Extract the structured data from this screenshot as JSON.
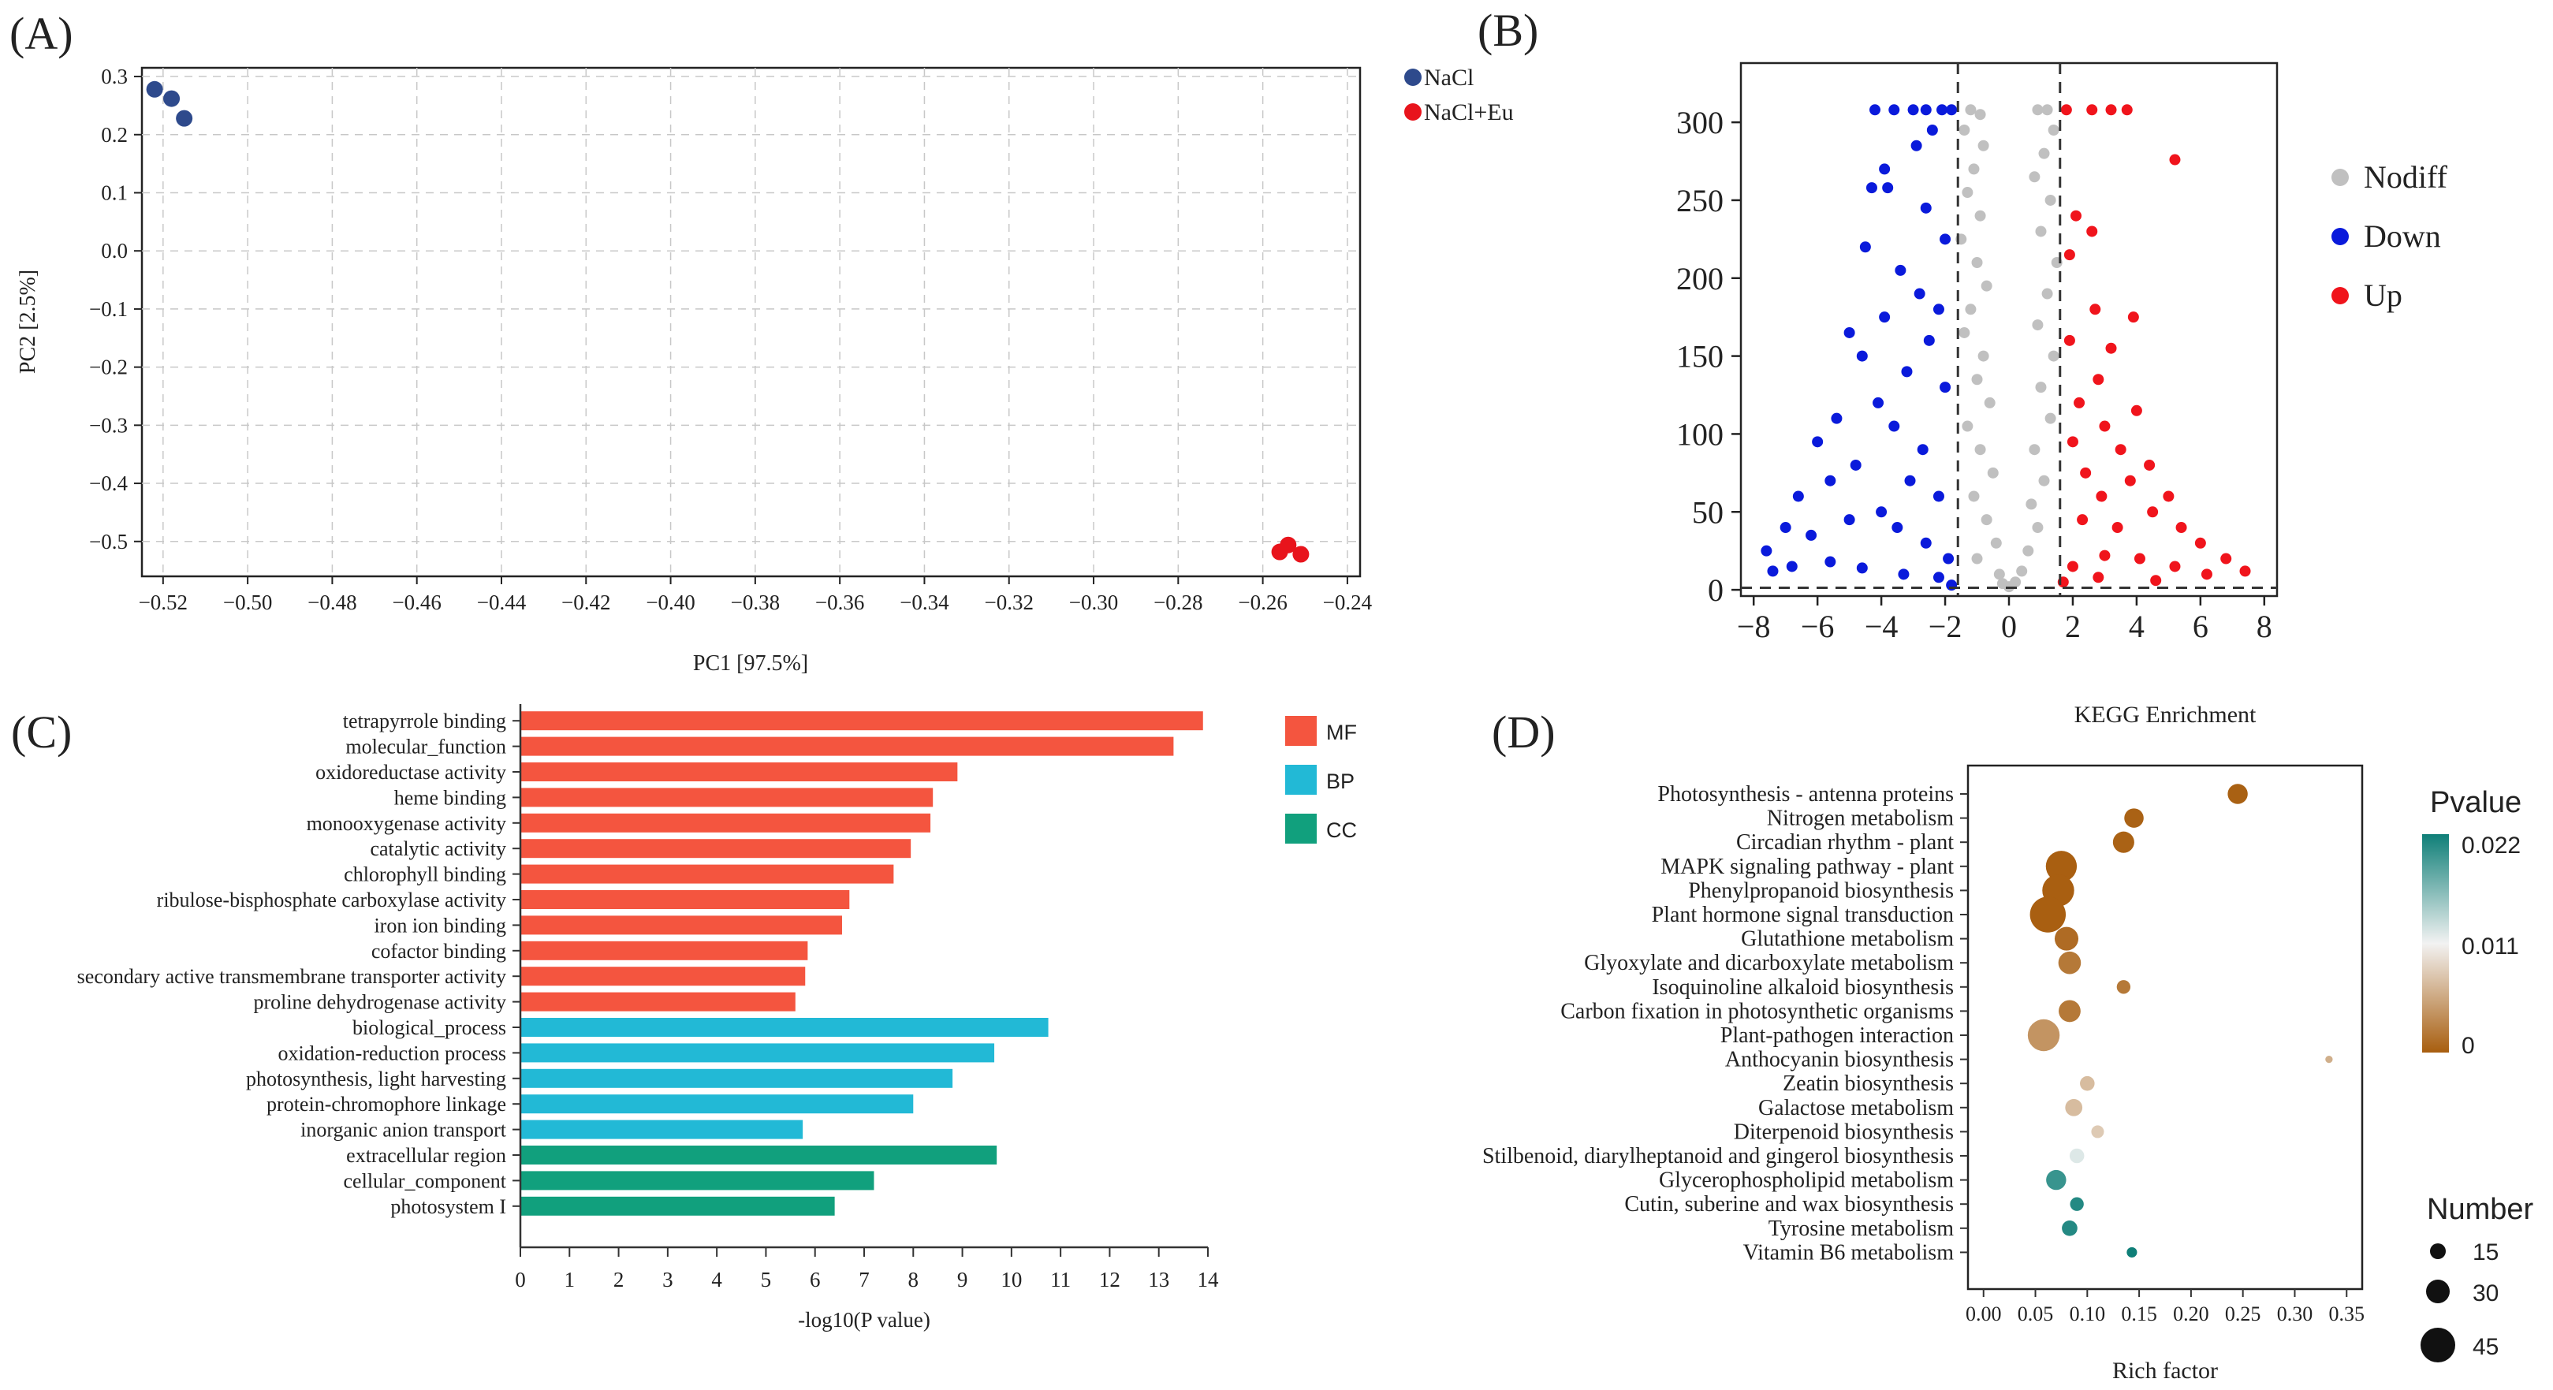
{
  "panels": {
    "a": {
      "letter": "(A)"
    },
    "b": {
      "letter": "(B)"
    },
    "c": {
      "letter": "(C)"
    },
    "d": {
      "letter": "(D)"
    }
  },
  "chart_data": [
    {
      "id": "a",
      "type": "scatter",
      "title": "",
      "xlabel": "PC1 [97.5%]",
      "ylabel": "PC2 [2.5%]",
      "xlim": [
        -0.525,
        -0.237
      ],
      "ylim": [
        -0.56,
        0.315
      ],
      "xticks": [
        -0.52,
        -0.5,
        -0.48,
        -0.46,
        -0.44,
        -0.42,
        -0.4,
        -0.38,
        -0.36,
        -0.34,
        -0.32,
        -0.3,
        -0.28,
        -0.26,
        -0.24
      ],
      "yticks": [
        0.3,
        0.2,
        0.1,
        0.0,
        -0.1,
        -0.2,
        -0.3,
        -0.4,
        -0.5
      ],
      "xtick_labels": [
        "−0.52",
        "−0.50",
        "−0.48",
        "−0.46",
        "−0.44",
        "−0.42",
        "−0.40",
        "−0.38",
        "−0.36",
        "−0.34",
        "−0.32",
        "−0.30",
        "−0.28",
        "−0.26",
        "−0.24"
      ],
      "ytick_labels": [
        "0.3",
        "0.2",
        "0.1",
        "0.0",
        "−0.1",
        "−0.2",
        "−0.3",
        "−0.4",
        "−0.5"
      ],
      "grid": true,
      "legend_position": "top-right-outside",
      "series": [
        {
          "name": "NaCl",
          "color": "#2e4a8c",
          "points": [
            [
              -0.522,
              0.278
            ],
            [
              -0.518,
              0.262
            ],
            [
              -0.515,
              0.228
            ]
          ]
        },
        {
          "name": "NaCl+Eu",
          "color": "#e8141c",
          "points": [
            [
              -0.256,
              -0.518
            ],
            [
              -0.254,
              -0.506
            ],
            [
              -0.251,
              -0.522
            ]
          ]
        }
      ]
    },
    {
      "id": "b",
      "type": "scatter",
      "title": "",
      "xlabel": "",
      "ylabel": "",
      "xlim": [
        -8.4,
        8.4
      ],
      "ylim": [
        -4,
        338
      ],
      "xticks": [
        -8,
        -6,
        -4,
        -2,
        0,
        2,
        4,
        6,
        8
      ],
      "yticks": [
        0,
        50,
        100,
        150,
        200,
        250,
        300
      ],
      "xtick_labels": [
        "−8",
        "−6",
        "−4",
        "−2",
        "0",
        "2",
        "4",
        "6",
        "8"
      ],
      "ytick_labels": [
        "0",
        "50",
        "100",
        "150",
        "200",
        "250",
        "300"
      ],
      "threshold_x": [
        -1.6,
        1.6
      ],
      "threshold_y": 1.3,
      "legend_position": "right",
      "series": [
        {
          "name": "Nodiff",
          "color": "#c0c0c0",
          "points": [
            [
              -1.2,
              308
            ],
            [
              -0.9,
              305
            ],
            [
              -1.4,
              295
            ],
            [
              -0.8,
              285
            ],
            [
              -1.1,
              270
            ],
            [
              -1.3,
              255
            ],
            [
              -0.9,
              240
            ],
            [
              -1.5,
              225
            ],
            [
              -1.0,
              210
            ],
            [
              -0.7,
              195
            ],
            [
              -1.2,
              180
            ],
            [
              -1.4,
              165
            ],
            [
              -0.8,
              150
            ],
            [
              -1.0,
              135
            ],
            [
              -0.6,
              120
            ],
            [
              -1.3,
              105
            ],
            [
              -0.9,
              90
            ],
            [
              -0.5,
              75
            ],
            [
              -1.1,
              60
            ],
            [
              -0.7,
              45
            ],
            [
              -0.4,
              30
            ],
            [
              -1.0,
              20
            ],
            [
              -0.3,
              10
            ],
            [
              -0.2,
              4
            ],
            [
              0.0,
              2
            ],
            [
              0.2,
              5
            ],
            [
              0.4,
              12
            ],
            [
              0.6,
              25
            ],
            [
              0.9,
              40
            ],
            [
              0.7,
              55
            ],
            [
              1.1,
              70
            ],
            [
              0.8,
              90
            ],
            [
              1.3,
              110
            ],
            [
              1.0,
              130
            ],
            [
              1.4,
              150
            ],
            [
              0.9,
              170
            ],
            [
              1.2,
              190
            ],
            [
              1.5,
              210
            ],
            [
              1.0,
              230
            ],
            [
              1.3,
              250
            ],
            [
              0.8,
              265
            ],
            [
              1.1,
              280
            ],
            [
              1.4,
              295
            ],
            [
              0.9,
              308
            ],
            [
              1.2,
              308
            ]
          ]
        },
        {
          "name": "Down",
          "color": "#0a1adb",
          "points": [
            [
              -4.2,
              308
            ],
            [
              -3.6,
              308
            ],
            [
              -3.0,
              308
            ],
            [
              -2.6,
              308
            ],
            [
              -2.1,
              308
            ],
            [
              -1.8,
              308
            ],
            [
              -2.4,
              295
            ],
            [
              -2.9,
              285
            ],
            [
              -3.9,
              270
            ],
            [
              -4.3,
              258
            ],
            [
              -3.8,
              258
            ],
            [
              -2.6,
              245
            ],
            [
              -2.0,
              225
            ],
            [
              -4.5,
              220
            ],
            [
              -3.4,
              205
            ],
            [
              -2.8,
              190
            ],
            [
              -2.2,
              180
            ],
            [
              -3.9,
              175
            ],
            [
              -5.0,
              165
            ],
            [
              -4.6,
              150
            ],
            [
              -2.5,
              160
            ],
            [
              -3.2,
              140
            ],
            [
              -2.0,
              130
            ],
            [
              -4.1,
              120
            ],
            [
              -5.4,
              110
            ],
            [
              -6.0,
              95
            ],
            [
              -3.6,
              105
            ],
            [
              -2.7,
              90
            ],
            [
              -4.8,
              80
            ],
            [
              -6.6,
              60
            ],
            [
              -5.6,
              70
            ],
            [
              -3.1,
              70
            ],
            [
              -2.2,
              60
            ],
            [
              -7.0,
              40
            ],
            [
              -7.6,
              25
            ],
            [
              -6.2,
              35
            ],
            [
              -5.0,
              45
            ],
            [
              -4.0,
              50
            ],
            [
              -3.5,
              40
            ],
            [
              -2.6,
              30
            ],
            [
              -1.9,
              20
            ],
            [
              -7.4,
              12
            ],
            [
              -6.8,
              15
            ],
            [
              -5.6,
              18
            ],
            [
              -4.6,
              14
            ],
            [
              -3.3,
              10
            ],
            [
              -2.2,
              8
            ],
            [
              -1.8,
              3
            ]
          ]
        },
        {
          "name": "Up",
          "color": "#f0141c",
          "points": [
            [
              1.8,
              308
            ],
            [
              2.6,
              308
            ],
            [
              3.2,
              308
            ],
            [
              3.7,
              308
            ],
            [
              5.2,
              276
            ],
            [
              2.1,
              240
            ],
            [
              2.6,
              230
            ],
            [
              1.9,
              215
            ],
            [
              3.9,
              175
            ],
            [
              2.7,
              180
            ],
            [
              3.2,
              155
            ],
            [
              1.9,
              160
            ],
            [
              2.8,
              135
            ],
            [
              2.2,
              120
            ],
            [
              4.0,
              115
            ],
            [
              3.0,
              105
            ],
            [
              2.0,
              95
            ],
            [
              3.5,
              90
            ],
            [
              4.4,
              80
            ],
            [
              2.4,
              75
            ],
            [
              3.8,
              70
            ],
            [
              5.0,
              60
            ],
            [
              2.9,
              60
            ],
            [
              4.5,
              50
            ],
            [
              5.4,
              40
            ],
            [
              6.0,
              30
            ],
            [
              3.4,
              40
            ],
            [
              2.3,
              45
            ],
            [
              6.8,
              20
            ],
            [
              7.4,
              12
            ],
            [
              6.2,
              10
            ],
            [
              5.2,
              15
            ],
            [
              4.1,
              20
            ],
            [
              3.0,
              22
            ],
            [
              2.0,
              15
            ],
            [
              1.7,
              5
            ],
            [
              2.8,
              8
            ],
            [
              4.6,
              6
            ]
          ]
        }
      ]
    },
    {
      "id": "c",
      "type": "bar",
      "orientation": "horizontal",
      "title": "",
      "xlabel": "-log10(P value)",
      "ylabel": "",
      "xlim": [
        0,
        14
      ],
      "xticks": [
        0,
        1,
        2,
        3,
        4,
        5,
        6,
        7,
        8,
        9,
        10,
        11,
        12,
        13,
        14
      ],
      "legend_position": "top-right",
      "legend": [
        {
          "name": "MF",
          "color": "#f4553f"
        },
        {
          "name": "BP",
          "color": "#22b9d6"
        },
        {
          "name": "CC",
          "color": "#11a07d"
        }
      ],
      "bars": [
        {
          "label": "tetrapyrrole binding",
          "value": 13.9,
          "group": "MF"
        },
        {
          "label": "molecular_function",
          "value": 13.3,
          "group": "MF"
        },
        {
          "label": "oxidoreductase activity",
          "value": 8.9,
          "group": "MF"
        },
        {
          "label": "heme binding",
          "value": 8.4,
          "group": "MF"
        },
        {
          "label": "monooxygenase activity",
          "value": 8.35,
          "group": "MF"
        },
        {
          "label": "catalytic activity",
          "value": 7.95,
          "group": "MF"
        },
        {
          "label": "chlorophyll binding",
          "value": 7.6,
          "group": "MF"
        },
        {
          "label": "ribulose-bisphosphate carboxylase activity",
          "value": 6.7,
          "group": "MF"
        },
        {
          "label": "iron ion binding",
          "value": 6.55,
          "group": "MF"
        },
        {
          "label": "cofactor binding",
          "value": 5.85,
          "group": "MF"
        },
        {
          "label": "secondary active transmembrane transporter activity",
          "value": 5.8,
          "group": "MF"
        },
        {
          "label": "proline dehydrogenase activity",
          "value": 5.6,
          "group": "MF"
        },
        {
          "label": "biological_process",
          "value": 10.75,
          "group": "BP"
        },
        {
          "label": "oxidation-reduction process",
          "value": 9.65,
          "group": "BP"
        },
        {
          "label": "photosynthesis, light harvesting",
          "value": 8.8,
          "group": "BP"
        },
        {
          "label": "protein-chromophore linkage",
          "value": 8.0,
          "group": "BP"
        },
        {
          "label": "inorganic anion transport",
          "value": 5.75,
          "group": "BP"
        },
        {
          "label": "extracellular region",
          "value": 9.7,
          "group": "CC"
        },
        {
          "label": "cellular_component",
          "value": 7.2,
          "group": "CC"
        },
        {
          "label": "photosystem I",
          "value": 6.4,
          "group": "CC"
        }
      ]
    },
    {
      "id": "d",
      "type": "scatter",
      "title": "KEGG Enrichment",
      "xlabel": "Rich factor",
      "ylabel": "",
      "xlim": [
        -0.015,
        0.365
      ],
      "xticks": [
        0.0,
        0.05,
        0.1,
        0.15,
        0.2,
        0.25,
        0.3,
        0.35
      ],
      "xtick_labels": [
        "0.00",
        "0.05",
        "0.10",
        "0.15",
        "0.20",
        "0.25",
        "0.30",
        "0.35"
      ],
      "colorbar": {
        "title": "Pvalue",
        "ticks": [
          "0.022",
          "0.011",
          "0"
        ],
        "low": "#a85e0f",
        "mid": "#f2f2f2",
        "high": "#0f7f78"
      },
      "size_legend": {
        "title": "Number",
        "values": [
          15,
          30,
          45
        ]
      },
      "terms": [
        {
          "label": "Photosynthesis - antenna proteins",
          "rich": 0.245,
          "count": 15,
          "pvalue": 0.0002
        },
        {
          "label": "Nitrogen metabolism",
          "rich": 0.145,
          "count": 14,
          "pvalue": 0.0003
        },
        {
          "label": "Circadian rhythm - plant",
          "rich": 0.135,
          "count": 17,
          "pvalue": 0.0003
        },
        {
          "label": "MAPK signaling pathway - plant",
          "rich": 0.075,
          "count": 36,
          "pvalue": 0.0001
        },
        {
          "label": "Phenylpropanoid biosynthesis",
          "rich": 0.072,
          "count": 38,
          "pvalue": 0.0001
        },
        {
          "label": "Plant hormone signal transduction",
          "rich": 0.062,
          "count": 48,
          "pvalue": 0.0001
        },
        {
          "label": "Glutathione metabolism",
          "rich": 0.08,
          "count": 21,
          "pvalue": 0.001
        },
        {
          "label": "Glyoxylate and dicarboxylate metabolism",
          "rich": 0.083,
          "count": 19,
          "pvalue": 0.002
        },
        {
          "label": "Isoquinoline alkaloid biosynthesis",
          "rich": 0.135,
          "count": 7,
          "pvalue": 0.002
        },
        {
          "label": "Carbon fixation in photosynthetic organisms",
          "rich": 0.083,
          "count": 18,
          "pvalue": 0.002
        },
        {
          "label": "Plant-pathogen interaction",
          "rich": 0.058,
          "count": 38,
          "pvalue": 0.004
        },
        {
          "label": "Anthocyanin biosynthesis",
          "rich": 0.333,
          "count": 2,
          "pvalue": 0.006
        },
        {
          "label": "Zeatin biosynthesis",
          "rich": 0.1,
          "count": 8,
          "pvalue": 0.007
        },
        {
          "label": "Galactose metabolism",
          "rich": 0.087,
          "count": 11,
          "pvalue": 0.007
        },
        {
          "label": "Diterpenoid biosynthesis",
          "rich": 0.11,
          "count": 6,
          "pvalue": 0.008
        },
        {
          "label": "Stilbenoid, diarylheptanoid and gingerol biosynthesis",
          "rich": 0.09,
          "count": 8,
          "pvalue": 0.012
        },
        {
          "label": "Glycerophospholipid metabolism",
          "rich": 0.07,
          "count": 15,
          "pvalue": 0.02
        },
        {
          "label": "Cutin, suberine and wax biosynthesis",
          "rich": 0.09,
          "count": 7,
          "pvalue": 0.021
        },
        {
          "label": "Tyrosine metabolism",
          "rich": 0.083,
          "count": 9,
          "pvalue": 0.021
        },
        {
          "label": "Vitamin B6 metabolism",
          "rich": 0.143,
          "count": 4,
          "pvalue": 0.022
        }
      ]
    }
  ]
}
